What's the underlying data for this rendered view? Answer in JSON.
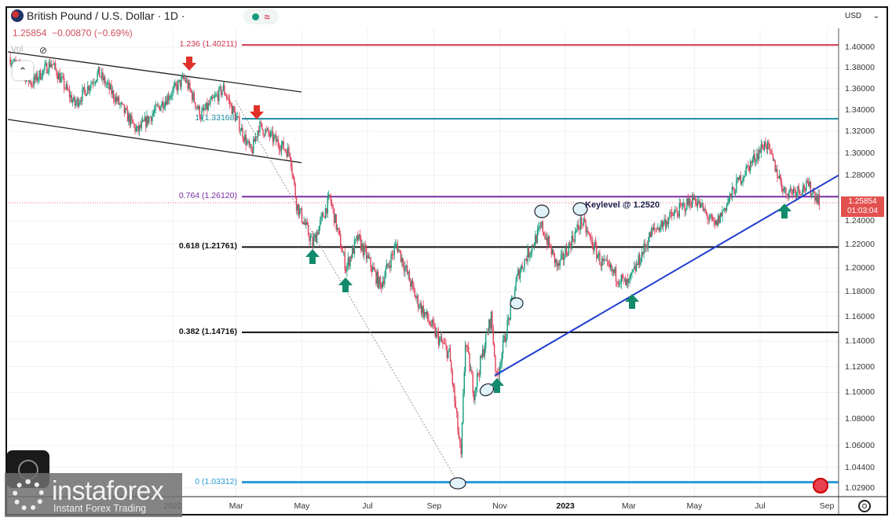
{
  "header": {
    "symbol": "British Pound / U.S. Dollar · 1D ·",
    "last": "1.25854",
    "change": "−0.00870 (−0.69%)",
    "vol_label": "Vol"
  },
  "currency": "USD",
  "price_tag": {
    "price": "1.25854",
    "countdown": "01:03:04"
  },
  "annotation": "Keylevel @ 1.2520",
  "watermark": {
    "brand": "instaforex",
    "tagline": "Instant Forex Trading"
  },
  "colors": {
    "up": "#139b7c",
    "down": "#e0405a",
    "trendline": "#1f3fd0",
    "fib_1236": "#d2324e",
    "fib_1": "#1a8aa0",
    "fib_0764": "#7a2ba0",
    "fib_0618": "#111111",
    "fib_0382": "#111111",
    "fib_0": "#2a9ad8"
  },
  "chart_data": {
    "type": "candlestick",
    "title": "British Pound / U.S. Dollar · 1D",
    "y_scale": "log",
    "ylim": [
      1.029,
      1.4
    ],
    "y_ticks": [
      "1.40000",
      "1.38000",
      "1.36000",
      "1.34000",
      "1.32000",
      "1.30000",
      "1.28000",
      "1.24000",
      "1.22000",
      "1.20000",
      "1.18000",
      "1.16000",
      "1.14000",
      "1.12000",
      "1.10000",
      "1.08000",
      "1.06000",
      "1.04400",
      "1.02900"
    ],
    "x_ticks": [
      {
        "label": "2022",
        "date": "2022-01-01",
        "bold": false
      },
      {
        "label": "Mar",
        "date": "2022-03-01"
      },
      {
        "label": "May",
        "date": "2022-05-01"
      },
      {
        "label": "Jul",
        "date": "2022-07-01"
      },
      {
        "label": "Sep",
        "date": "2022-09-01"
      },
      {
        "label": "Nov",
        "date": "2022-11-01"
      },
      {
        "label": "2023",
        "date": "2023-01-01",
        "bold": true
      },
      {
        "label": "Mar",
        "date": "2023-03-01"
      },
      {
        "label": "May",
        "date": "2023-05-01"
      },
      {
        "label": "Jul",
        "date": "2023-07-01"
      },
      {
        "label": "Sep",
        "date": "2023-09-01"
      }
    ],
    "price_path": [
      [
        "2021-08-02",
        1.39
      ],
      [
        "2021-08-23",
        1.365
      ],
      [
        "2021-09-10",
        1.385
      ],
      [
        "2021-10-02",
        1.345
      ],
      [
        "2021-10-24",
        1.375
      ],
      [
        "2021-11-29",
        1.32
      ],
      [
        "2022-01-12",
        1.37
      ],
      [
        "2022-01-27",
        1.335
      ],
      [
        "2022-02-17",
        1.36
      ],
      [
        "2022-03-15",
        1.3
      ],
      [
        "2022-03-22",
        1.325
      ],
      [
        "2022-04-20",
        1.3
      ],
      [
        "2022-04-26",
        1.255
      ],
      [
        "2022-05-11",
        1.22
      ],
      [
        "2022-05-27",
        1.26
      ],
      [
        "2022-06-11",
        1.2
      ],
      [
        "2022-06-22",
        1.225
      ],
      [
        "2022-07-13",
        1.185
      ],
      [
        "2022-07-28",
        1.22
      ],
      [
        "2022-08-15",
        1.175
      ],
      [
        "2022-09-03",
        1.145
      ],
      [
        "2022-09-15",
        1.13
      ],
      [
        "2022-09-26",
        1.05
      ],
      [
        "2022-09-30",
        1.14
      ],
      [
        "2022-10-08",
        1.1
      ],
      [
        "2022-10-24",
        1.16
      ],
      [
        "2022-10-29",
        1.11
      ],
      [
        "2022-11-18",
        1.195
      ],
      [
        "2022-12-10",
        1.235
      ],
      [
        "2022-12-25",
        1.2
      ],
      [
        "2023-01-16",
        1.24
      ],
      [
        "2023-02-03",
        1.205
      ],
      [
        "2023-02-28",
        1.185
      ],
      [
        "2023-03-22",
        1.23
      ],
      [
        "2023-05-01",
        1.26
      ],
      [
        "2023-05-20",
        1.235
      ],
      [
        "2023-06-11",
        1.275
      ],
      [
        "2023-07-06",
        1.31
      ],
      [
        "2023-07-24",
        1.265
      ],
      [
        "2023-08-15",
        1.27
      ],
      [
        "2023-08-25",
        1.2585
      ]
    ],
    "fib_levels": [
      {
        "label": "1.236 (1.40211)",
        "price": 1.40211,
        "color": "#d2324e"
      },
      {
        "label": "1 (1.33168)",
        "price": 1.33168,
        "color": "#1a8aa0"
      },
      {
        "label": "0.764 (1.26120)",
        "price": 1.2612,
        "color": "#7a2ba0"
      },
      {
        "label": "0.618 (1.21761)",
        "price": 1.21761,
        "color": "#111111"
      },
      {
        "label": "0.382 (1.14716)",
        "price": 1.14716,
        "color": "#111111"
      },
      {
        "label": "0 (1.03312)",
        "price": 1.03312,
        "color": "#2a9ad8"
      }
    ],
    "last_price": 1.25854
  }
}
